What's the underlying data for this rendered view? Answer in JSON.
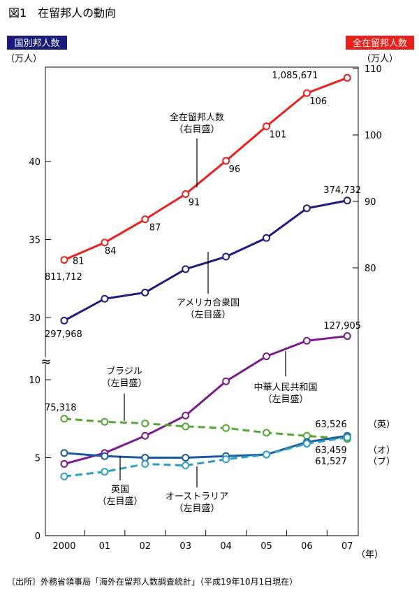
{
  "title": "図1　在留邦人の動向",
  "left_badge": "国別邦人数",
  "right_badge": "全在留邦人数",
  "left_unit": "（万人）",
  "right_unit": "（万人）",
  "year_unit": "（年）",
  "source": "〔出所〕外務省領事局「海外在留邦人数調査統計」（平成19年10月1日現在）",
  "colors": {
    "badge_left": "#1a1a7a",
    "badge_right": "#e8211c",
    "total": "#e8211c",
    "usa": "#1e1a7e",
    "china": "#7a1a8c",
    "brazil": "#52a832",
    "uk": "#1b5aa0",
    "australia": "#2aa0c0"
  },
  "chart_data": {
    "type": "line",
    "categories": [
      "2000",
      "01",
      "02",
      "03",
      "04",
      "05",
      "06",
      "07"
    ],
    "left_axis": {
      "upper_range": [
        29,
        42
      ],
      "upper_ticks": [
        "30",
        "35",
        "40"
      ],
      "lower_range": [
        0,
        11
      ],
      "lower_ticks": [
        "0",
        "5",
        "10"
      ],
      "break": "≈"
    },
    "right_axis": {
      "range": [
        74,
        110
      ],
      "ticks": [
        "80",
        "90",
        "100",
        "110"
      ]
    },
    "series": [
      {
        "key": "total",
        "axis": "right",
        "values": [
          81.2,
          83.8,
          87.3,
          91.1,
          96.1,
          101.3,
          106.3,
          108.6
        ],
        "style": "solid"
      },
      {
        "key": "usa",
        "axis": "left-upper",
        "values": [
          29.8,
          31.2,
          31.6,
          33.1,
          33.9,
          35.1,
          37.0,
          37.5
        ],
        "style": "solid"
      },
      {
        "key": "china",
        "axis": "left-lower",
        "values": [
          4.6,
          5.3,
          6.4,
          7.7,
          9.9,
          11.5,
          12.5,
          12.8
        ],
        "style": "solid"
      },
      {
        "key": "brazil",
        "axis": "left-lower",
        "values": [
          7.5,
          7.3,
          7.2,
          7.0,
          6.9,
          6.6,
          6.4,
          6.2
        ],
        "style": "dashed"
      },
      {
        "key": "uk",
        "axis": "left-lower",
        "values": [
          5.3,
          5.1,
          5.0,
          5.0,
          5.1,
          5.2,
          6.0,
          6.4
        ],
        "style": "solid"
      },
      {
        "key": "australia",
        "axis": "left-lower",
        "values": [
          3.8,
          4.1,
          4.6,
          4.5,
          4.9,
          5.2,
          5.9,
          6.3
        ],
        "style": "dashed"
      }
    ],
    "data_labels": {
      "total": [
        "81",
        "84",
        "87",
        "91",
        "96",
        "101",
        "106"
      ],
      "total_start": "811,712",
      "total_end": "1,085,671",
      "usa_start": "297,968",
      "usa_end": "374,732",
      "china_end": "127,905",
      "brazil_start": "75,318",
      "uk_end": "63,526",
      "australia_end": "63,459",
      "brazil_end": "61,527",
      "uk_tag": "（英）",
      "australia_tag": "（オ）",
      "brazil_tag": "（ブ）"
    },
    "series_labels": {
      "total": [
        "全在留邦人数",
        "（右目盛）"
      ],
      "usa": [
        "アメリカ合衆国",
        "（左目盛）"
      ],
      "china": [
        "中華人民共和国",
        "（左目盛）"
      ],
      "brazil": [
        "ブラジル",
        "（左目盛）"
      ],
      "uk": [
        "英国",
        "（左目盛）"
      ],
      "australia": [
        "オーストラリア",
        "（左目盛）"
      ]
    }
  }
}
